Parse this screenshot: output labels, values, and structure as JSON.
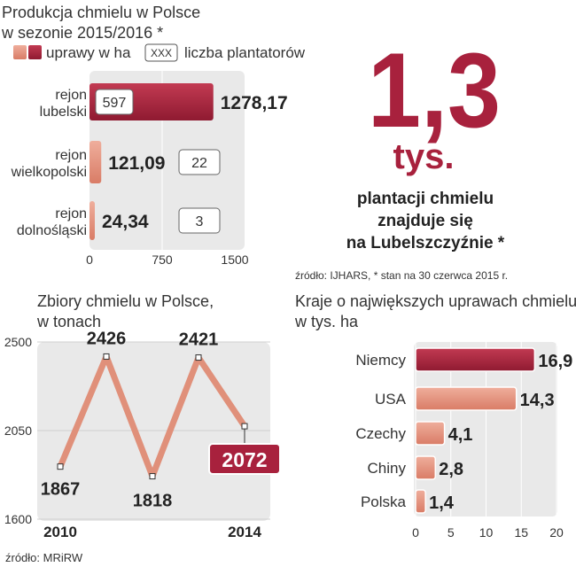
{
  "colors": {
    "dark_red": "#a8213d",
    "salmon": "#e4907b",
    "line": "#e0907a",
    "panel": "#e9e9e9",
    "text": "#333333"
  },
  "chart_data": [
    {
      "type": "bar",
      "orientation": "horizontal",
      "title": "Produkcja chmielu w Polsce w sezonie 2015/2016 *",
      "title_lines": [
        "Produkcja chmielu w Polsce",
        "w sezonie 2015/2016 *"
      ],
      "legend": {
        "area_label": "uprawy w ha",
        "count_box": "XXX",
        "count_label": "liczba plantatorów"
      },
      "categories": [
        "rejon lubelski",
        "rejon wielkopolski",
        "rejon dolnośląski"
      ],
      "category_lines": [
        [
          "rejon",
          "lubelski"
        ],
        [
          "rejon",
          "wielkopolski"
        ],
        [
          "rejon",
          "dolnośląski"
        ]
      ],
      "series": [
        {
          "name": "uprawy w ha",
          "values": [
            1278.17,
            121.09,
            24.34
          ],
          "labels": [
            "1278,17",
            "121,09",
            "24,34"
          ]
        },
        {
          "name": "liczba plantatorów",
          "values": [
            597,
            22,
            3
          ],
          "labels": [
            "597",
            "22",
            "3"
          ]
        }
      ],
      "xlim": [
        0,
        1500
      ],
      "xticks": [
        "0",
        "750",
        "1500"
      ]
    },
    {
      "type": "line",
      "title": "Zbiory chmielu w Polsce, w tonach",
      "title_lines": [
        "Zbiory chmielu w Polsce,",
        "w tonach"
      ],
      "x": [
        2010,
        2011,
        2012,
        2013,
        2014
      ],
      "xticks": [
        "2010",
        "2014"
      ],
      "values": [
        1867,
        2426,
        1818,
        2421,
        2072
      ],
      "labels": [
        "1867",
        "2426",
        "1818",
        "2421",
        "2072"
      ],
      "ylim": [
        1600,
        2500
      ],
      "yticks": [
        "1600",
        "2050",
        "2500"
      ],
      "highlight_last": true
    },
    {
      "type": "bar",
      "orientation": "horizontal",
      "title": "Kraje o największych uprawach chmielu, w tys. ha",
      "title_lines": [
        "Kraje o największych uprawach chmielu,",
        "w tys. ha"
      ],
      "categories": [
        "Niemcy",
        "USA",
        "Czechy",
        "Chiny",
        "Polska"
      ],
      "values": [
        16.9,
        14.3,
        4.1,
        2.8,
        1.4
      ],
      "labels": [
        "16,9",
        "14,3",
        "4,1",
        "2,8",
        "1,4"
      ],
      "xlim": [
        0,
        20
      ],
      "xticks": [
        "0",
        "5",
        "10",
        "15",
        "20"
      ]
    }
  ],
  "highlight": {
    "big_number": "1,3",
    "unit": "tys.",
    "caption_lines": [
      "plantacji chmielu",
      "znajduje się",
      "na Lubelszczyźnie *"
    ],
    "source": "źródło: IJHARS, * stan na 30 czerwca 2015 r."
  },
  "footer_source": "źródło: MRiRW"
}
